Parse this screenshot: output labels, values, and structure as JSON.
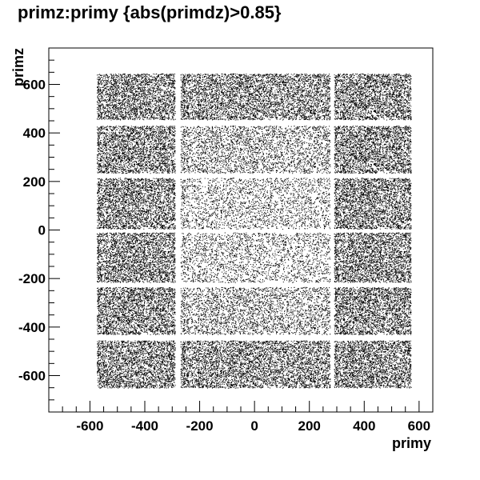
{
  "chart_data": {
    "type": "scatter",
    "title": "primz:primy {abs(primdz)>0.85}",
    "xlabel": "primy",
    "ylabel": "primz",
    "xlim": [
      -750,
      650
    ],
    "ylim": [
      -750,
      750
    ],
    "x_ticks": [
      -600,
      -400,
      -200,
      0,
      200,
      400,
      600
    ],
    "y_ticks": [
      -600,
      -400,
      -200,
      0,
      200,
      400,
      600
    ],
    "x_tick_labels": [
      "-600",
      "-400",
      "-200",
      "0",
      "200",
      "400",
      "600"
    ],
    "y_tick_labels": [
      "-600",
      "-400",
      "-200",
      "0",
      "200",
      "400",
      "600"
    ],
    "grid": false,
    "legend": "none",
    "marker_color": "#000000",
    "module_columns": [
      [
        -575,
        -290
      ],
      [
        -270,
        275
      ],
      [
        290,
        570
      ]
    ],
    "module_rows": [
      [
        -650,
        -455
      ],
      [
        -430,
        -235
      ],
      [
        -215,
        -10
      ],
      [
        5,
        215
      ],
      [
        235,
        430
      ],
      [
        455,
        645
      ]
    ],
    "density_note": "central column rows 2-5 sparse, others dense",
    "density": [
      [
        0.55,
        0.5,
        0.55
      ],
      [
        0.55,
        0.3,
        0.55
      ],
      [
        0.55,
        0.22,
        0.55
      ],
      [
        0.55,
        0.22,
        0.55
      ],
      [
        0.55,
        0.3,
        0.55
      ],
      [
        0.55,
        0.5,
        0.55
      ]
    ]
  }
}
